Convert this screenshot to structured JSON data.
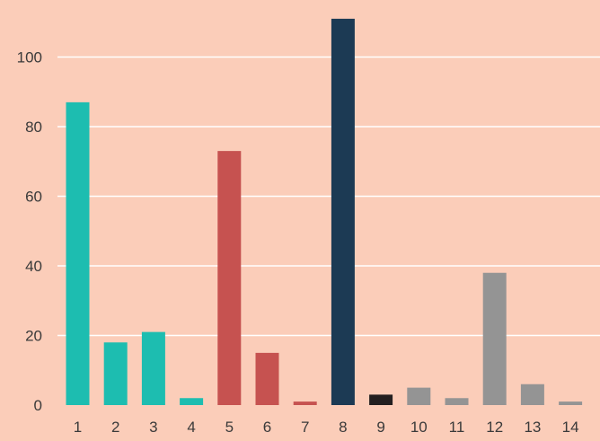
{
  "chart_data": {
    "type": "bar",
    "title": "",
    "xlabel": "",
    "ylabel": "",
    "categories": [
      "1",
      "2",
      "3",
      "4",
      "5",
      "6",
      "7",
      "8",
      "9",
      "10",
      "11",
      "12",
      "13",
      "14"
    ],
    "values": [
      87,
      18,
      21,
      2,
      73,
      15,
      1,
      111,
      3,
      5,
      2,
      38,
      6,
      1
    ],
    "bar_colors": [
      "#1dbdb0",
      "#1dbdb0",
      "#1dbdb0",
      "#1dbdb0",
      "#c65250",
      "#c65250",
      "#c65250",
      "#1c3a54",
      "#231f20",
      "#949494",
      "#949494",
      "#949494",
      "#949494",
      "#949494"
    ],
    "ylim": [
      0,
      112
    ],
    "yticks": [
      0,
      20,
      40,
      60,
      80,
      100
    ],
    "grid": true,
    "legend": "none",
    "background": "#fbcdb9"
  }
}
